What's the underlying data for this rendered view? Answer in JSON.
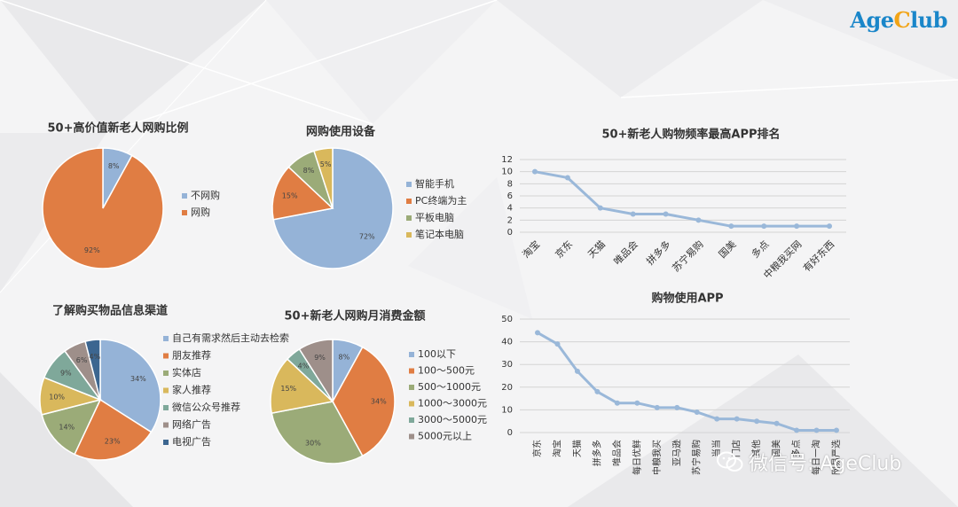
{
  "logo": {
    "part1": "Age",
    "part2": "C",
    "part3": "lub"
  },
  "watermark": {
    "text": "微信号: AgeClub"
  },
  "colors": {
    "blue": "#95b3d7",
    "orange": "#e07d43",
    "green": "#9bab78",
    "yellow": "#d9b85c",
    "teal": "#7fa89a",
    "grey": "#9e8f8a",
    "darkblue": "#3c6690",
    "line": "#9ab8d9"
  },
  "chart_data": [
    {
      "id": "pie1",
      "type": "pie",
      "title": "50+高价值新老人网购比例",
      "labels": [
        "不网购",
        "网购"
      ],
      "values": [
        8,
        92
      ],
      "data_labels": [
        "8%",
        "92%"
      ],
      "colors": [
        "#95b3d7",
        "#e07d43"
      ],
      "legend_position": "right"
    },
    {
      "id": "pie2",
      "type": "pie",
      "title": "网购使用设备",
      "labels": [
        "智能手机",
        "PC终端为主",
        "平板电脑",
        "笔记本电脑"
      ],
      "values": [
        72,
        15,
        8,
        5
      ],
      "data_labels": [
        "72%",
        "15%",
        "8%",
        "5%"
      ],
      "colors": [
        "#95b3d7",
        "#e07d43",
        "#9bab78",
        "#d9b85c"
      ],
      "legend_position": "right"
    },
    {
      "id": "pie3",
      "type": "pie",
      "title": "了解购买物品信息渠道",
      "labels": [
        "自己有需求然后主动去检索",
        "朋友推荐",
        "实体店",
        "家人推荐",
        "微信公众号推荐",
        "网络广告",
        "电视广告"
      ],
      "values": [
        34,
        23,
        14,
        10,
        9,
        6,
        4
      ],
      "data_labels": [
        "34%",
        "23%",
        "14%",
        "10%",
        "9%",
        "6%",
        "4%"
      ],
      "colors": [
        "#95b3d7",
        "#e07d43",
        "#9bab78",
        "#d9b85c",
        "#7fa89a",
        "#9e8f8a",
        "#3c6690"
      ],
      "legend_position": "right"
    },
    {
      "id": "pie4",
      "type": "pie",
      "title": "50+新老人网购月消费金额",
      "labels": [
        "100以下",
        "100～500元",
        "500～1000元",
        "1000～3000元",
        "3000～5000元",
        "5000元以上"
      ],
      "values": [
        8,
        34,
        30,
        15,
        4,
        9
      ],
      "data_labels": [
        "8%",
        "34%",
        "30%",
        "15%",
        "4%",
        "9%"
      ],
      "colors": [
        "#95b3d7",
        "#e07d43",
        "#9bab78",
        "#d9b85c",
        "#7fa89a",
        "#9e8f8a"
      ],
      "legend_position": "right"
    },
    {
      "id": "line1",
      "type": "line",
      "title": "50+新老人购物频率最高APP排名",
      "x": [
        "淘宝",
        "京东",
        "天猫",
        "唯品会",
        "拼多多",
        "苏宁易购",
        "国美",
        "多点",
        "中粮我买网",
        "有好东西"
      ],
      "values": [
        10,
        9,
        4,
        3,
        3,
        2,
        1,
        1,
        1,
        1
      ],
      "ylim": [
        0,
        12
      ],
      "yticks": [
        "0",
        "2",
        "4",
        "6",
        "8",
        "10",
        "12"
      ],
      "grid": true
    },
    {
      "id": "line2",
      "type": "line",
      "title": "购物使用APP",
      "x": [
        "京东",
        "淘宝",
        "天猫",
        "拼多多",
        "唯品会",
        "每日优鲜",
        "中粮我买",
        "亚马逊",
        "苏宁易购",
        "当当",
        "门店",
        "其他",
        "国美",
        "多点",
        "每日一淘",
        "网易严选"
      ],
      "values": [
        44,
        39,
        27,
        18,
        13,
        13,
        11,
        11,
        9,
        6,
        6,
        5,
        4,
        1,
        1,
        1
      ],
      "ylim": [
        0,
        50
      ],
      "yticks": [
        "0",
        "10",
        "20",
        "30",
        "40",
        "50"
      ],
      "grid": true
    }
  ]
}
